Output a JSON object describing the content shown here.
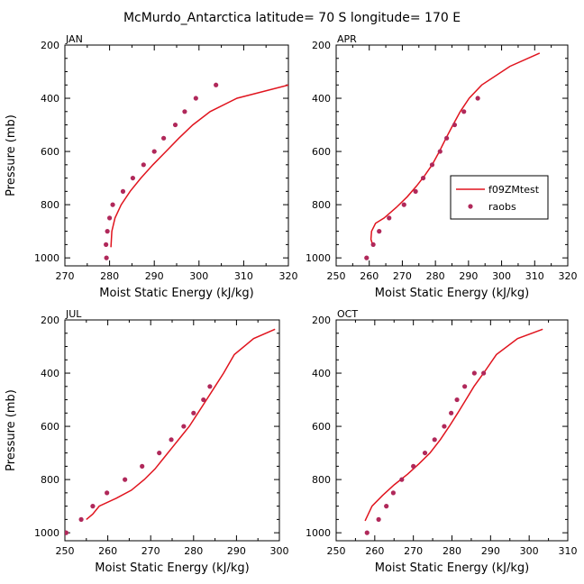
{
  "figure_title": "McMurdo_Antarctica  latitude= 70 S longitude= 170 E",
  "colors": {
    "model": "#e0141e",
    "obs": "#b0285a",
    "axis": "#000000"
  },
  "legend": {
    "model_label": "f09ZMtest",
    "obs_label": "raobs"
  },
  "chart_data": [
    {
      "type": "line",
      "title": "JAN",
      "xlabel": "Moist Static Energy (kJ/kg)",
      "ylabel": "Pressure (mb)",
      "xlim": [
        270,
        320
      ],
      "ylim": [
        1030,
        200
      ],
      "xticks": [
        270,
        280,
        290,
        300,
        310,
        320
      ],
      "yticks": [
        200,
        400,
        600,
        800,
        1000
      ],
      "grid": false,
      "series": [
        {
          "name": "f09ZMtest",
          "style": "line",
          "x": [
            280.3,
            280.5,
            281.2,
            282.6,
            284.6,
            287.0,
            289.7,
            292.6,
            295.5,
            298.6,
            302.5,
            308.5,
            320.0
          ],
          "y": [
            960,
            900,
            850,
            800,
            750,
            700,
            650,
            600,
            550,
            500,
            450,
            400,
            350
          ]
        },
        {
          "name": "raobs",
          "style": "markers",
          "x": [
            279.3,
            279.2,
            279.5,
            280.0,
            280.7,
            283.0,
            285.2,
            287.6,
            290.0,
            292.1,
            294.7,
            296.8,
            299.3,
            303.8
          ],
          "y": [
            1000,
            950,
            900,
            850,
            800,
            750,
            700,
            650,
            600,
            550,
            500,
            450,
            400,
            350
          ]
        }
      ]
    },
    {
      "type": "line",
      "title": "APR",
      "xlabel": "Moist Static Energy (kJ/kg)",
      "ylabel": "",
      "xlim": [
        250,
        320
      ],
      "ylim": [
        1030,
        200
      ],
      "xticks": [
        250,
        260,
        270,
        280,
        290,
        300,
        310,
        320
      ],
      "yticks": [
        200,
        400,
        600,
        800,
        1000
      ],
      "grid": false,
      "legend_position": "right",
      "series": [
        {
          "name": "f09ZMtest",
          "style": "line",
          "x": [
            261.0,
            260.5,
            260.7,
            261.9,
            264.5,
            268.2,
            271.5,
            274.3,
            276.8,
            279.0,
            281.2,
            283.2,
            285.3,
            287.5,
            290.2,
            294.0,
            302.5,
            311.5
          ],
          "y": [
            950,
            930,
            900,
            870,
            850,
            810,
            770,
            730,
            690,
            650,
            600,
            550,
            500,
            450,
            400,
            350,
            280,
            230
          ]
        },
        {
          "name": "raobs",
          "style": "markers",
          "x": [
            259.2,
            261.2,
            263.0,
            266.0,
            270.5,
            274.0,
            276.3,
            279.0,
            281.4,
            283.4,
            285.8,
            288.6,
            292.8
          ],
          "y": [
            1000,
            950,
            900,
            850,
            800,
            750,
            700,
            650,
            600,
            550,
            500,
            450,
            400
          ]
        }
      ]
    },
    {
      "type": "line",
      "title": "JUL",
      "xlabel": "Moist Static Energy (kJ/kg)",
      "ylabel": "Pressure (mb)",
      "xlim": [
        250,
        300
      ],
      "ylim": [
        1030,
        200
      ],
      "xticks": [
        250,
        260,
        270,
        280,
        290,
        300
      ],
      "yticks": [
        200,
        400,
        600,
        800,
        1000
      ],
      "grid": false,
      "series": [
        {
          "name": "f09ZMtest",
          "style": "line",
          "x": [
            255.0,
            256.5,
            258.0,
            262.0,
            265.5,
            268.5,
            271.0,
            273.0,
            275.0,
            277.0,
            279.0,
            281.0,
            283.0,
            285.0,
            287.0,
            289.5,
            294.0,
            299.0
          ],
          "y": [
            950,
            930,
            900,
            870,
            840,
            800,
            760,
            720,
            680,
            640,
            600,
            550,
            500,
            450,
            400,
            330,
            270,
            235
          ]
        },
        {
          "name": "raobs",
          "style": "markers",
          "x": [
            250.3,
            253.8,
            256.5,
            259.8,
            264.0,
            268.0,
            272.0,
            274.8,
            277.7,
            280.0,
            282.3,
            283.8
          ],
          "y": [
            1000,
            950,
            900,
            850,
            800,
            750,
            700,
            650,
            600,
            550,
            500,
            450
          ]
        }
      ]
    },
    {
      "type": "line",
      "title": "OCT",
      "xlabel": "Moist Static Energy (kJ/kg)",
      "ylabel": "",
      "xlim": [
        250,
        310
      ],
      "ylim": [
        1030,
        200
      ],
      "xticks": [
        250,
        260,
        270,
        280,
        290,
        300,
        310
      ],
      "yticks": [
        200,
        400,
        600,
        800,
        1000
      ],
      "grid": false,
      "series": [
        {
          "name": "f09ZMtest",
          "style": "line",
          "x": [
            257.5,
            259.3,
            262.0,
            265.0,
            268.5,
            271.5,
            274.3,
            277.0,
            279.3,
            281.5,
            283.6,
            285.7,
            288.2,
            291.5,
            297.0,
            303.5
          ],
          "y": [
            955,
            900,
            860,
            820,
            780,
            740,
            700,
            650,
            600,
            550,
            500,
            450,
            400,
            330,
            270,
            235
          ]
        },
        {
          "name": "raobs",
          "style": "markers",
          "x": [
            258.0,
            261.0,
            263.0,
            264.8,
            267.0,
            270.0,
            273.0,
            275.5,
            278.0,
            279.8,
            281.3,
            283.3,
            285.8,
            288.2
          ],
          "y": [
            1000,
            950,
            900,
            850,
            800,
            750,
            700,
            650,
            600,
            550,
            500,
            450,
            400,
            400
          ]
        }
      ]
    }
  ]
}
